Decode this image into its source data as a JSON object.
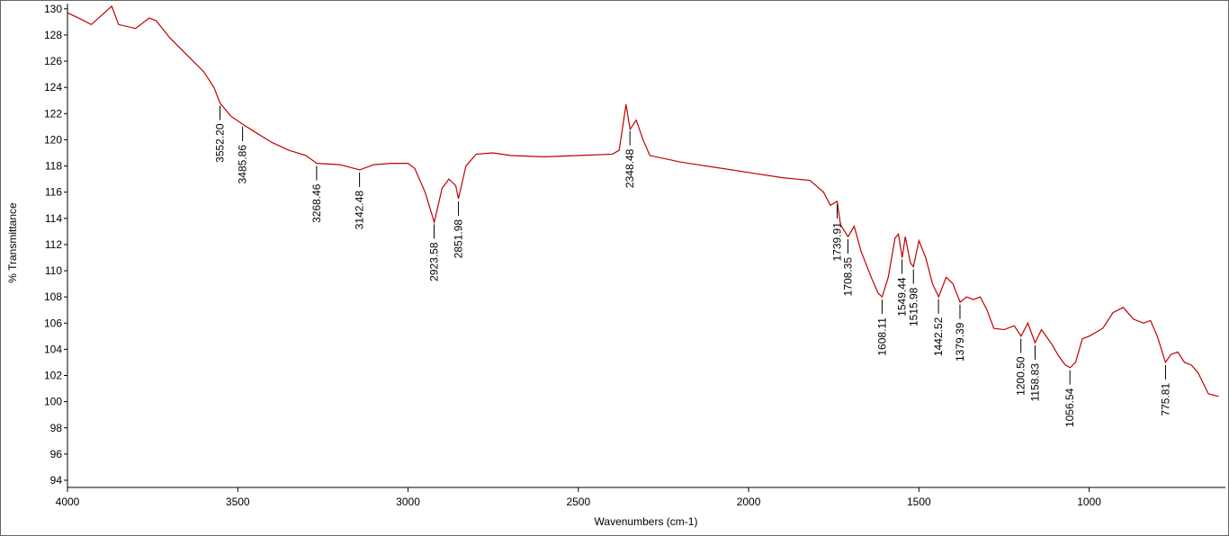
{
  "chart_data": {
    "type": "line",
    "x_label": "Wavenumbers (cm-1)",
    "y_label": "% Transmittance",
    "xlim": [
      4000,
      600
    ],
    "ylim": [
      93.45,
      130.4
    ],
    "xticks": [
      4000,
      3500,
      3000,
      2500,
      2000,
      1500,
      1000
    ],
    "yticks": [
      94,
      96,
      98,
      100,
      102,
      104,
      106,
      108,
      110,
      112,
      114,
      116,
      118,
      120,
      122,
      124,
      126,
      128,
      130
    ],
    "grid": false,
    "series": [
      {
        "color": "#c00000",
        "x": [
          4000,
          3960,
          3930,
          3900,
          3870,
          3850,
          3800,
          3760,
          3740,
          3700,
          3650,
          3600,
          3570,
          3552,
          3520,
          3486,
          3450,
          3400,
          3350,
          3300,
          3268,
          3200,
          3142,
          3100,
          3050,
          3000,
          2980,
          2950,
          2923,
          2900,
          2880,
          2860,
          2852,
          2830,
          2800,
          2750,
          2700,
          2600,
          2500,
          2400,
          2380,
          2360,
          2348,
          2330,
          2310,
          2290,
          2200,
          2100,
          2000,
          1900,
          1820,
          1780,
          1760,
          1740,
          1730,
          1708,
          1690,
          1670,
          1640,
          1620,
          1608,
          1590,
          1570,
          1560,
          1549,
          1540,
          1525,
          1516,
          1500,
          1480,
          1460,
          1442,
          1420,
          1400,
          1379,
          1360,
          1340,
          1320,
          1300,
          1280,
          1250,
          1220,
          1200,
          1180,
          1159,
          1140,
          1110,
          1090,
          1070,
          1056,
          1040,
          1020,
          1000,
          960,
          930,
          900,
          870,
          840,
          820,
          800,
          776,
          760,
          740,
          720,
          700,
          680,
          650,
          620
        ],
        "values": [
          129.7,
          129.2,
          128.8,
          129.5,
          130.2,
          128.8,
          128.5,
          129.3,
          129.1,
          127.8,
          126.5,
          125.2,
          124.0,
          122.8,
          121.8,
          121.2,
          120.6,
          119.8,
          119.2,
          118.8,
          118.2,
          118.1,
          117.7,
          118.1,
          118.2,
          118.2,
          117.8,
          116.0,
          113.7,
          116.3,
          117.0,
          116.5,
          115.5,
          118.0,
          118.9,
          119.0,
          118.8,
          118.7,
          118.8,
          118.9,
          119.2,
          122.7,
          120.8,
          121.5,
          120.0,
          118.8,
          118.3,
          117.9,
          117.5,
          117.1,
          116.9,
          116.0,
          115.0,
          115.3,
          113.5,
          112.6,
          113.4,
          111.5,
          109.5,
          108.3,
          108.0,
          109.5,
          112.5,
          112.8,
          111.0,
          112.6,
          110.6,
          110.3,
          112.3,
          111.0,
          109.0,
          108.0,
          109.5,
          109.0,
          107.6,
          108.0,
          107.8,
          108.0,
          107.0,
          105.6,
          105.5,
          105.8,
          105.0,
          106.0,
          104.5,
          105.5,
          104.4,
          103.5,
          102.8,
          102.6,
          103.0,
          104.8,
          105.0,
          105.6,
          106.8,
          107.2,
          106.3,
          106.0,
          106.2,
          105.0,
          103.0,
          103.6,
          103.8,
          103.0,
          102.8,
          102.2,
          100.6,
          100.4
        ]
      }
    ],
    "peaks": [
      {
        "value": 3552.2,
        "label": "3552.20"
      },
      {
        "value": 3485.86,
        "label": "3485.86"
      },
      {
        "value": 3268.46,
        "label": "3268.46"
      },
      {
        "value": 3142.48,
        "label": "3142.48"
      },
      {
        "value": 2923.58,
        "label": "2923.58"
      },
      {
        "value": 2851.98,
        "label": "2851.98"
      },
      {
        "value": 2348.48,
        "label": "2348.48"
      },
      {
        "value": 1739.91,
        "label": "1739.91"
      },
      {
        "value": 1708.35,
        "label": "1708.35"
      },
      {
        "value": 1608.11,
        "label": "1608.11"
      },
      {
        "value": 1549.44,
        "label": "1549.44"
      },
      {
        "value": 1515.98,
        "label": "1515.98"
      },
      {
        "value": 1442.52,
        "label": "1442.52"
      },
      {
        "value": 1379.39,
        "label": "1379.39"
      },
      {
        "value": 1200.5,
        "label": "1200.50"
      },
      {
        "value": 1158.83,
        "label": "1158.83"
      },
      {
        "value": 1056.54,
        "label": "1056.54"
      },
      {
        "value": 775.81,
        "label": "775.81"
      }
    ]
  }
}
